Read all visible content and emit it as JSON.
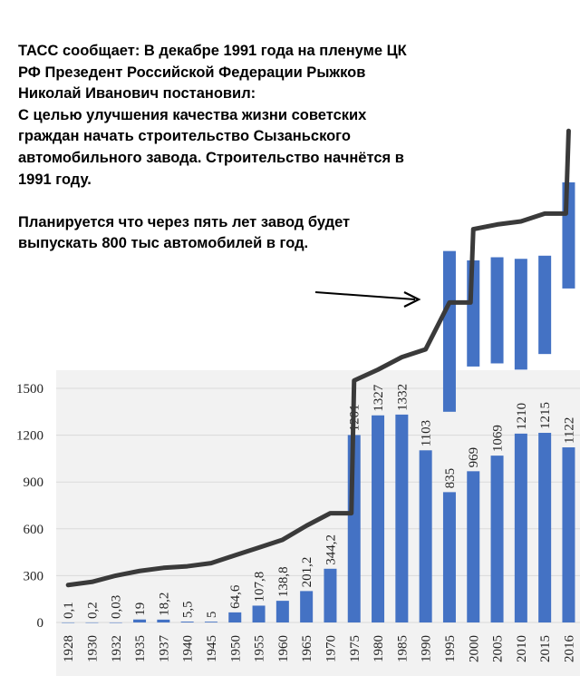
{
  "caption": "ТАСС сообщает: В декабре 1991 года на пленуме ЦК РФ Презедент Российской Федерации Рыжков Николай Иванович постановил:\nС целью улучшения качества жизни советских граждан начать строительство Сызаньского автомобильного завода. Строительство начнётся в 1991 году.\n\nПланируется что через пять лет завод будет выпускать 800 тыс автомобилей в год.",
  "colors": {
    "bar": "#4472C4",
    "line": "#3a3a3a",
    "grid": "#d9d9d9",
    "plot_bg": "#f2f2f2"
  },
  "chart_data": {
    "type": "bar",
    "categories": [
      "1928",
      "1930",
      "1932",
      "1935",
      "1937",
      "1940",
      "1945",
      "1950",
      "1955",
      "1960",
      "1965",
      "1970",
      "1975",
      "1980",
      "1985",
      "1990",
      "1995",
      "2000",
      "2005",
      "2010",
      "2015",
      "2016"
    ],
    "values": [
      0.1,
      0.2,
      0.03,
      19,
      18.2,
      5.5,
      5,
      64.6,
      107.8,
      138.8,
      201.2,
      344.2,
      1201,
      1327,
      1332,
      1103,
      835,
      969,
      1069,
      1210,
      1215,
      1122
    ],
    "labels": [
      "0,1",
      "0,2",
      "0,03",
      "19",
      "18,2",
      "5,5",
      "5",
      "64,6",
      "107,8",
      "138,8",
      "201,2",
      "344,2",
      "1201",
      "1327",
      "1332",
      "1103",
      "835",
      "969",
      "1069",
      "1210",
      "1215",
      "1122"
    ],
    "yticks": [
      "0",
      "300",
      "600",
      "900",
      "1200",
      "1500"
    ],
    "ylim": [
      0,
      1500
    ],
    "grid": true,
    "annotation": {
      "type": "hand-drawn trend line extending above the plot, with an arrow pointing from the caption to the 1995 bar",
      "extended_bars": [
        {
          "category": "1995",
          "top": 2380,
          "bottom": 1350
        },
        {
          "category": "2000",
          "top": 2320,
          "bottom": 1640
        },
        {
          "category": "2005",
          "top": 2340,
          "bottom": 1660
        },
        {
          "category": "2010",
          "top": 2330,
          "bottom": 1620
        },
        {
          "category": "2015",
          "top": 2350,
          "bottom": 1720
        },
        {
          "category": "2016",
          "top": 2820,
          "bottom": 2140
        }
      ],
      "trend_line": [
        [
          "1928",
          240
        ],
        [
          "1930",
          260
        ],
        [
          "1932",
          300
        ],
        [
          "1935",
          330
        ],
        [
          "1937",
          350
        ],
        [
          "1940",
          360
        ],
        [
          "1945",
          380
        ],
        [
          "1950",
          430
        ],
        [
          "1955",
          480
        ],
        [
          "1960",
          530
        ],
        [
          "1965",
          620
        ],
        [
          "1970",
          700
        ],
        [
          "1975",
          1550
        ],
        [
          "1980",
          1620
        ],
        [
          "1985",
          1700
        ],
        [
          "1990",
          1750
        ],
        [
          "1995",
          2050
        ],
        [
          "2000",
          2520
        ],
        [
          "2005",
          2550
        ],
        [
          "2010",
          2570
        ],
        [
          "2015",
          2620
        ],
        [
          "2016",
          3150
        ]
      ]
    }
  }
}
